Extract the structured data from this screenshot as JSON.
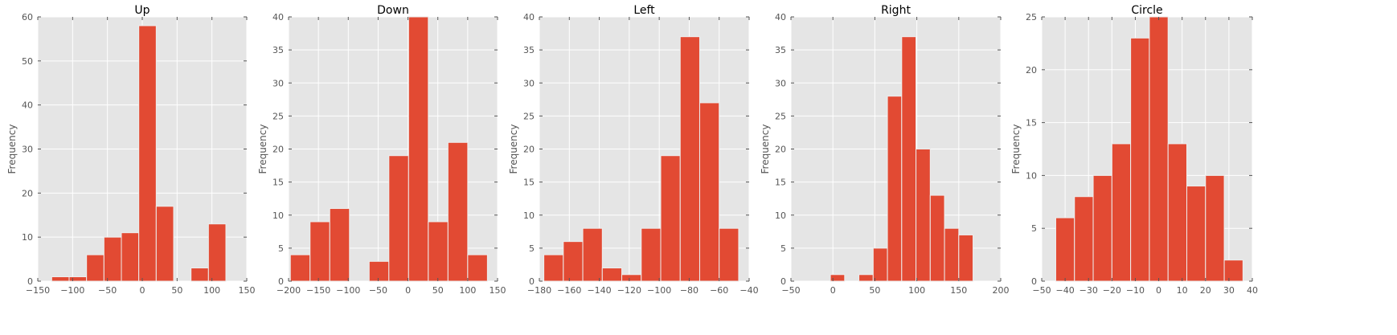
{
  "chart_data": [
    {
      "type": "bar",
      "title": "Up",
      "ylabel": "Frequency",
      "xlim": [
        -150,
        150
      ],
      "ylim": [
        0,
        60
      ],
      "xticks": [
        -150,
        -100,
        -50,
        0,
        50,
        100,
        150
      ],
      "xtick_labels": [
        "−150",
        "−100",
        "−50",
        "0",
        "50",
        "100",
        "150"
      ],
      "yticks": [
        0,
        10,
        20,
        30,
        40,
        50,
        60
      ],
      "grid": true,
      "bins": [
        {
          "x0": -130,
          "x1": -105,
          "count": 1
        },
        {
          "x0": -105,
          "x1": -80,
          "count": 1
        },
        {
          "x0": -80,
          "x1": -55,
          "count": 6
        },
        {
          "x0": -55,
          "x1": -30,
          "count": 10
        },
        {
          "x0": -30,
          "x1": -5,
          "count": 11
        },
        {
          "x0": -5,
          "x1": 20,
          "count": 58
        },
        {
          "x0": 20,
          "x1": 45,
          "count": 17
        },
        {
          "x0": 45,
          "x1": 70,
          "count": 0
        },
        {
          "x0": 70,
          "x1": 95,
          "count": 3
        },
        {
          "x0": 95,
          "x1": 120,
          "count": 13
        }
      ]
    },
    {
      "type": "bar",
      "title": "Down",
      "ylabel": "Frequency",
      "xlim": [
        -200,
        150
      ],
      "ylim": [
        0,
        40
      ],
      "xticks": [
        -200,
        -150,
        -100,
        -50,
        0,
        50,
        100,
        150
      ],
      "xtick_labels": [
        "−200",
        "−150",
        "−100",
        "−50",
        "0",
        "50",
        "100",
        "150"
      ],
      "yticks": [
        0,
        5,
        10,
        15,
        20,
        25,
        30,
        35,
        40
      ],
      "grid": true,
      "bins": [
        {
          "x0": -197,
          "x1": -164,
          "count": 4
        },
        {
          "x0": -164,
          "x1": -131,
          "count": 9
        },
        {
          "x0": -131,
          "x1": -98,
          "count": 11
        },
        {
          "x0": -98,
          "x1": -65,
          "count": 0
        },
        {
          "x0": -65,
          "x1": -32,
          "count": 3
        },
        {
          "x0": -32,
          "x1": 1,
          "count": 19
        },
        {
          "x0": 1,
          "x1": 34,
          "count": 40
        },
        {
          "x0": 34,
          "x1": 67,
          "count": 9
        },
        {
          "x0": 67,
          "x1": 100,
          "count": 21
        },
        {
          "x0": 100,
          "x1": 133,
          "count": 4
        }
      ]
    },
    {
      "type": "bar",
      "title": "Left",
      "ylabel": "Frequency",
      "xlim": [
        -180,
        -40
      ],
      "ylim": [
        0,
        40
      ],
      "xticks": [
        -180,
        -160,
        -140,
        -120,
        -100,
        -80,
        -60,
        -40
      ],
      "xtick_labels": [
        "−180",
        "−160",
        "−140",
        "−120",
        "−100",
        "−80",
        "−60",
        "−40"
      ],
      "yticks": [
        0,
        5,
        10,
        15,
        20,
        25,
        30,
        35,
        40
      ],
      "grid": true,
      "bins": [
        {
          "x0": -177,
          "x1": -164,
          "count": 4
        },
        {
          "x0": -164,
          "x1": -151,
          "count": 6
        },
        {
          "x0": -151,
          "x1": -138,
          "count": 8
        },
        {
          "x0": -138,
          "x1": -125,
          "count": 2
        },
        {
          "x0": -125,
          "x1": -112,
          "count": 1
        },
        {
          "x0": -112,
          "x1": -99,
          "count": 8
        },
        {
          "x0": -99,
          "x1": -86,
          "count": 19
        },
        {
          "x0": -86,
          "x1": -73,
          "count": 37
        },
        {
          "x0": -73,
          "x1": -60,
          "count": 27
        },
        {
          "x0": -60,
          "x1": -47,
          "count": 8
        }
      ]
    },
    {
      "type": "bar",
      "title": "Right",
      "ylabel": "Frequency",
      "xlim": [
        -50,
        200
      ],
      "ylim": [
        0,
        40
      ],
      "xticks": [
        -50,
        0,
        50,
        100,
        150,
        200
      ],
      "xtick_labels": [
        "−50",
        "0",
        "50",
        "100",
        "150",
        "200"
      ],
      "yticks": [
        0,
        5,
        10,
        15,
        20,
        25,
        30,
        35,
        40
      ],
      "grid": true,
      "bins": [
        {
          "x0": -3,
          "x1": 14,
          "count": 1
        },
        {
          "x0": 14,
          "x1": 31,
          "count": 0
        },
        {
          "x0": 31,
          "x1": 48,
          "count": 1
        },
        {
          "x0": 48,
          "x1": 65,
          "count": 5
        },
        {
          "x0": 65,
          "x1": 82,
          "count": 28
        },
        {
          "x0": 82,
          "x1": 99,
          "count": 37
        },
        {
          "x0": 99,
          "x1": 116,
          "count": 20
        },
        {
          "x0": 116,
          "x1": 133,
          "count": 13
        },
        {
          "x0": 133,
          "x1": 150,
          "count": 8
        },
        {
          "x0": 150,
          "x1": 167,
          "count": 7
        }
      ]
    },
    {
      "type": "bar",
      "title": "Circle",
      "ylabel": "Frequency",
      "xlim": [
        -50,
        40
      ],
      "ylim": [
        0,
        25
      ],
      "xticks": [
        -50,
        -40,
        -30,
        -20,
        -10,
        0,
        10,
        20,
        30,
        40
      ],
      "xtick_labels": [
        "−50",
        "−40",
        "−30",
        "−20",
        "−10",
        "0",
        "10",
        "20",
        "30",
        "40"
      ],
      "yticks": [
        0,
        5,
        10,
        15,
        20,
        25
      ],
      "grid": true,
      "bins": [
        {
          "x0": -44,
          "x1": -36,
          "count": 6
        },
        {
          "x0": -36,
          "x1": -28,
          "count": 8
        },
        {
          "x0": -28,
          "x1": -20,
          "count": 10
        },
        {
          "x0": -20,
          "x1": -12,
          "count": 13
        },
        {
          "x0": -12,
          "x1": -4,
          "count": 23
        },
        {
          "x0": -4,
          "x1": 4,
          "count": 25
        },
        {
          "x0": 4,
          "x1": 12,
          "count": 13
        },
        {
          "x0": 12,
          "x1": 20,
          "count": 9
        },
        {
          "x0": 20,
          "x1": 28,
          "count": 10
        },
        {
          "x0": 28,
          "x1": 36,
          "count": 2
        }
      ]
    }
  ],
  "colors": {
    "bar_fill": "#e24a33",
    "bar_edge": "#eeeeee",
    "axes_background": "#e5e5e5",
    "grid": "#ffffff",
    "tick_text": "#555555",
    "title_text": "#000000"
  }
}
